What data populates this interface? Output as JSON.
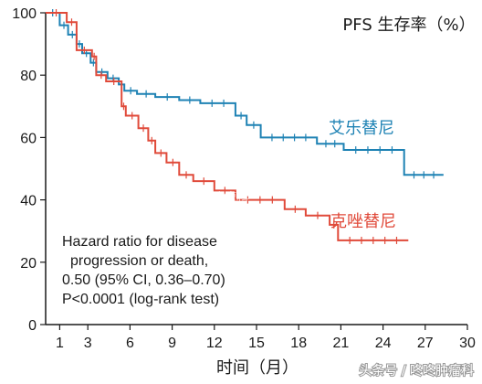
{
  "chart_data": {
    "type": "line",
    "title": "PFS 生存率（%）",
    "xlabel": "时间（月）",
    "ylabel": "",
    "xlim": [
      0,
      30
    ],
    "ylim": [
      0,
      100
    ],
    "xticks": [
      1,
      3,
      6,
      9,
      12,
      15,
      18,
      21,
      24,
      27,
      30
    ],
    "yticks": [
      0,
      20,
      40,
      60,
      80,
      100
    ],
    "grid": false,
    "series": [
      {
        "name": "艾乐替尼",
        "color": "#1e82b4",
        "x": [
          0,
          1,
          1,
          1.6,
          1.6,
          2.2,
          2.2,
          2.6,
          2.6,
          3.2,
          3.2,
          3.6,
          3.6,
          4.4,
          4.4,
          5.2,
          5.2,
          5.6,
          5.6,
          6.5,
          6.5,
          7.8,
          7.8,
          9.5,
          9.5,
          11,
          11,
          13.5,
          13.5,
          14.3,
          14.3,
          15.3,
          15.3,
          19.3,
          19.3,
          21.2,
          21.2,
          25.5,
          25.5,
          28.3
        ],
        "y": [
          100,
          100,
          96,
          96,
          93,
          93,
          90,
          90,
          87,
          87,
          84,
          84,
          81,
          81,
          79,
          79,
          77,
          77,
          75,
          75,
          74,
          74,
          73,
          73,
          72,
          72,
          71,
          71,
          67,
          67,
          64,
          64,
          60,
          60,
          58,
          58,
          56,
          56,
          48,
          48
        ]
      },
      {
        "name": "克唑替尼",
        "color": "#e04a3a",
        "x": [
          0,
          1.5,
          1.5,
          2.2,
          2.2,
          3.3,
          3.3,
          3.6,
          3.6,
          4.3,
          4.3,
          5.4,
          5.4,
          5.7,
          5.7,
          6.6,
          6.6,
          7.3,
          7.3,
          7.8,
          7.8,
          8.6,
          8.6,
          9.5,
          9.5,
          10.5,
          10.5,
          12,
          12,
          13.5,
          13.5,
          17,
          17,
          18.5,
          18.5,
          20.2,
          20.2,
          20.8,
          20.8,
          25.8
        ],
        "y": [
          100,
          100,
          97,
          97,
          88,
          88,
          86,
          86,
          80,
          80,
          78,
          78,
          70,
          70,
          67,
          67,
          63,
          63,
          59,
          59,
          55,
          55,
          52,
          52,
          48,
          48,
          46,
          46,
          43,
          43,
          40,
          40,
          37,
          37,
          35,
          35,
          32,
          32,
          27,
          27
        ]
      }
    ],
    "annotation": [
      "Hazard ratio for disease",
      "progression or death,",
      "0.50 (95% CI, 0.36–0.70)",
      "P<0.0001 (log-rank test)"
    ]
  },
  "watermarks": {
    "center": "咚咚肿瘤科",
    "footer": "头条号 / 咚咚肿瘤科"
  }
}
